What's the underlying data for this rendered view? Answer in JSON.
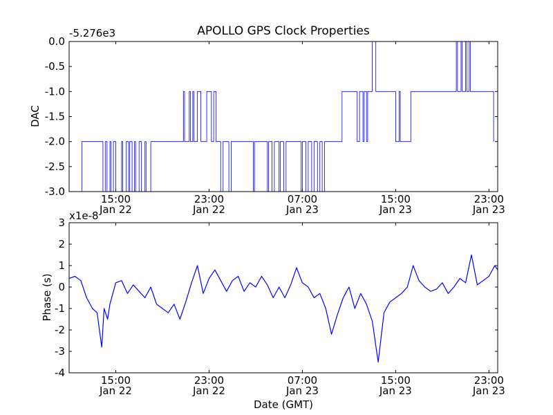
{
  "chart_data": [
    {
      "type": "line",
      "title": "APOLLO GPS Clock Properties",
      "offset_label": "-5.276e3",
      "ylabel": "DAC",
      "xlabel": "",
      "ylim": [
        -3.0,
        0.0
      ],
      "yticks": [
        "0.0",
        "-0.5",
        "-1.0",
        "-1.5",
        "-2.0",
        "-2.5",
        "-3.0"
      ],
      "ytick_values": [
        0.0,
        -0.5,
        -1.0,
        -1.5,
        -2.0,
        -2.5,
        -3.0
      ],
      "xlim": [
        "Jan 22 11:00",
        "Jan 23 23:45"
      ],
      "xticks": [
        {
          "time": "15:00",
          "date": "Jan 22",
          "hours": 15
        },
        {
          "time": "23:00",
          "date": "Jan 22",
          "hours": 23
        },
        {
          "time": "07:00",
          "date": "Jan 23",
          "hours": 31
        },
        {
          "time": "15:00",
          "date": "Jan 23",
          "hours": 39
        },
        {
          "time": "23:00",
          "date": "Jan 23",
          "hours": 47
        }
      ],
      "grid": false,
      "series": [
        {
          "color": "#0000ff",
          "x_hours": [
            12.0,
            12.1,
            13.8,
            13.9,
            14.1,
            14.25,
            14.5,
            14.6,
            14.8,
            15.0,
            15.5,
            15.6,
            15.9,
            16.1,
            16.2,
            16.4,
            16.6,
            16.7,
            17.0,
            17.2,
            17.5,
            17.6,
            18.0,
            18.1,
            20.8,
            20.9,
            21.3,
            21.4,
            21.6,
            21.7,
            22.0,
            22.3,
            22.8,
            23.2,
            23.4,
            23.6,
            23.9,
            24.0,
            24.2,
            24.7,
            24.9,
            25.0,
            26.8,
            26.9,
            28.0,
            28.1,
            28.4,
            28.6,
            29.0,
            29.1,
            29.4,
            29.6,
            30.9,
            31.0,
            31.3,
            31.5,
            31.8,
            32.0,
            32.3,
            32.5,
            32.7,
            32.9,
            33.0,
            34.4,
            34.5,
            35.7,
            35.9,
            36.2,
            36.3,
            36.5,
            36.6,
            36.9,
            37.0,
            37.3,
            38.9,
            39.0,
            39.3,
            39.4,
            40.3,
            40.5,
            40.7,
            42.0,
            44.2,
            44.3,
            44.6,
            44.7,
            45.0,
            45.1,
            45.3,
            45.4,
            47.3,
            47.4
          ],
          "y": [
            -3.0,
            -2.0,
            -2.0,
            -3.0,
            -2.0,
            -3.0,
            -2.0,
            -3.0,
            -2.0,
            -3.0,
            -2.0,
            -3.0,
            -2.0,
            -3.0,
            -2.0,
            -3.0,
            -2.0,
            -3.0,
            -2.0,
            -3.0,
            -2.0,
            -3.0,
            -2.0,
            -2.0,
            -1.0,
            -2.0,
            -1.0,
            -2.0,
            -1.0,
            -2.0,
            -1.0,
            -2.0,
            -1.0,
            -2.0,
            -1.0,
            -2.0,
            -2.0,
            -3.0,
            -2.0,
            -3.0,
            -2.0,
            -2.0,
            -3.0,
            -2.0,
            -3.0,
            -2.0,
            -3.0,
            -2.0,
            -3.0,
            -2.0,
            -3.0,
            -2.0,
            -3.0,
            -2.0,
            -3.0,
            -2.0,
            -3.0,
            -2.0,
            -3.0,
            -2.0,
            -3.0,
            -2.0,
            -2.0,
            -1.0,
            -1.0,
            -2.0,
            -1.0,
            -2.0,
            -1.0,
            -2.0,
            -1.0,
            -1.0,
            0.0,
            -1.0,
            -1.0,
            -2.0,
            -1.0,
            -2.0,
            -1.0,
            -1.0,
            -1.0,
            -1.0,
            0.0,
            -1.0,
            0.0,
            -1.0,
            0.0,
            -1.0,
            0.0,
            -1.0,
            -1.0,
            -2.0
          ]
        }
      ]
    },
    {
      "type": "line",
      "title": "",
      "offset_label": "x1e-8",
      "ylabel": "Phase (s)",
      "xlabel": "Date (GMT)",
      "ylim": [
        -4,
        3
      ],
      "yticks": [
        "3",
        "2",
        "1",
        "0",
        "-1",
        "-2",
        "-3",
        "-4"
      ],
      "ytick_values": [
        3,
        2,
        1,
        0,
        -1,
        -2,
        -3,
        -4
      ],
      "xlim": [
        "Jan 22 11:00",
        "Jan 23 23:45"
      ],
      "xticks": [
        {
          "time": "15:00",
          "date": "Jan 22",
          "hours": 15
        },
        {
          "time": "23:00",
          "date": "Jan 22",
          "hours": 23
        },
        {
          "time": "07:00",
          "date": "Jan 23",
          "hours": 31
        },
        {
          "time": "15:00",
          "date": "Jan 23",
          "hours": 39
        },
        {
          "time": "23:00",
          "date": "Jan 23",
          "hours": 47
        }
      ],
      "grid": false,
      "series": [
        {
          "color": "#0000ff",
          "x_hours": [
            11.0,
            11.5,
            12.0,
            12.5,
            13.0,
            13.4,
            13.8,
            14.0,
            14.3,
            14.5,
            15.0,
            15.5,
            16.0,
            16.5,
            17.0,
            17.5,
            18.0,
            18.5,
            19.0,
            19.5,
            20.0,
            20.5,
            21.0,
            21.5,
            22.0,
            22.5,
            23.0,
            23.5,
            24.0,
            24.5,
            25.0,
            25.5,
            26.0,
            26.5,
            27.0,
            27.5,
            28.0,
            28.5,
            29.0,
            29.5,
            30.0,
            30.5,
            31.0,
            31.5,
            32.0,
            32.5,
            33.0,
            33.5,
            34.0,
            34.5,
            35.0,
            35.5,
            36.0,
            36.5,
            37.0,
            37.5,
            38.0,
            38.5,
            39.0,
            39.5,
            40.0,
            40.5,
            41.0,
            41.5,
            42.0,
            42.5,
            43.0,
            43.5,
            44.0,
            44.5,
            45.0,
            45.5,
            46.0,
            46.5,
            47.0,
            47.5,
            47.75
          ],
          "y": [
            0.4,
            0.5,
            0.3,
            -0.5,
            -1.0,
            -1.2,
            -2.8,
            -1.0,
            -1.5,
            -0.8,
            0.2,
            0.3,
            -0.3,
            0.1,
            -0.2,
            -0.5,
            0.0,
            -0.8,
            -1.0,
            -1.2,
            -0.8,
            -1.5,
            -0.7,
            0.2,
            1.0,
            -0.3,
            0.4,
            0.8,
            0.3,
            -0.2,
            0.3,
            0.5,
            -0.2,
            0.2,
            0.0,
            0.5,
            0.1,
            -0.5,
            0.0,
            -0.5,
            0.1,
            0.9,
            0.2,
            0.0,
            -0.5,
            -0.3,
            -1.0,
            -2.2,
            -1.3,
            -0.5,
            0.0,
            -1.0,
            -0.3,
            -0.8,
            -1.6,
            -3.5,
            -1.2,
            -0.7,
            -0.5,
            -0.3,
            0.0,
            1.0,
            0.3,
            0.0,
            -0.2,
            -0.1,
            0.2,
            -0.3,
            0.0,
            0.4,
            0.2,
            1.5,
            0.1,
            0.3,
            0.5,
            1.0,
            0.8
          ]
        }
      ]
    }
  ]
}
